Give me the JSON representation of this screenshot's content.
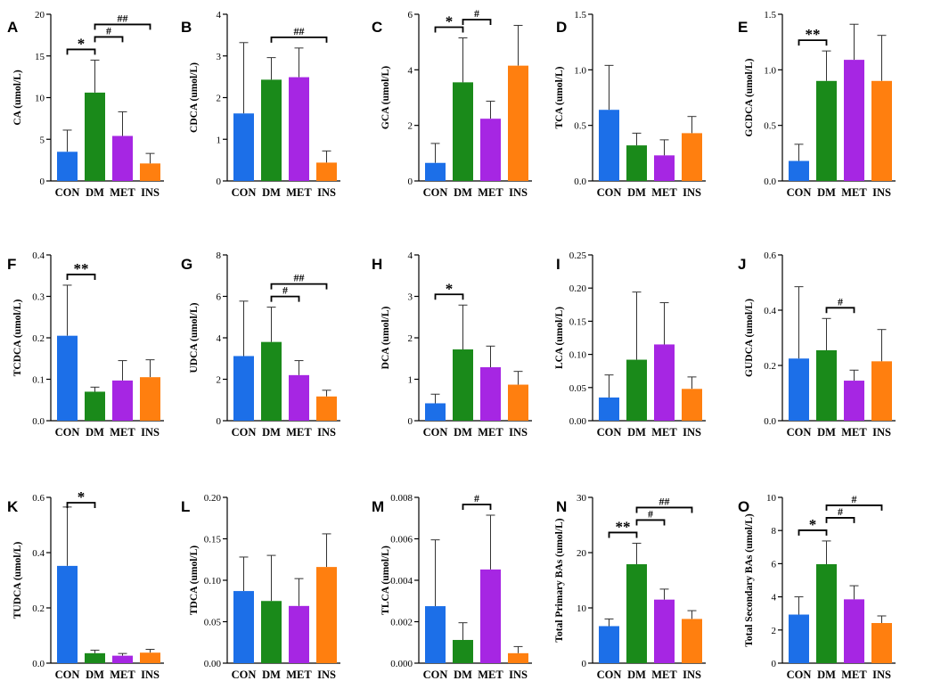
{
  "colors": {
    "CON": "#1c6fe8",
    "DM": "#1a8a1a",
    "MET": "#a626e3",
    "INS": "#ff7f0f"
  },
  "chart_data": [
    {
      "type": "bar",
      "panel": "A",
      "ylabel": "CA (umol/L)",
      "categories": [
        "CON",
        "DM",
        "MET",
        "INS"
      ],
      "values": [
        3.5,
        10.6,
        5.4,
        2.1
      ],
      "errors": [
        2.6,
        3.9,
        2.9,
        1.2
      ],
      "ylim": [
        0,
        20
      ],
      "yticks": [
        "0",
        "5",
        "10",
        "15",
        "20"
      ],
      "annotations": [
        {
          "from": 0,
          "to": 1,
          "label": "*"
        },
        {
          "from": 1,
          "to": 2,
          "label": "#"
        },
        {
          "from": 1,
          "to": 3,
          "label": "##"
        }
      ]
    },
    {
      "type": "bar",
      "panel": "B",
      "ylabel": "CDCA (umol/L)",
      "categories": [
        "CON",
        "DM",
        "MET",
        "INS"
      ],
      "values": [
        1.62,
        2.43,
        2.49,
        0.44
      ],
      "errors": [
        1.7,
        0.53,
        0.7,
        0.28
      ],
      "ylim": [
        0,
        4
      ],
      "yticks": [
        "0",
        "1",
        "2",
        "3",
        "4"
      ],
      "annotations": [
        {
          "from": 1,
          "to": 3,
          "label": "##"
        }
      ]
    },
    {
      "type": "bar",
      "panel": "C",
      "ylabel": "GCA (umol/L)",
      "categories": [
        "CON",
        "DM",
        "MET",
        "INS"
      ],
      "values": [
        0.65,
        3.55,
        2.24,
        4.15
      ],
      "errors": [
        0.7,
        1.6,
        0.63,
        1.45
      ],
      "ylim": [
        0,
        6
      ],
      "yticks": [
        "0",
        "2",
        "4",
        "6"
      ],
      "annotations": [
        {
          "from": 0,
          "to": 1,
          "label": "*"
        },
        {
          "from": 1,
          "to": 2,
          "label": "#"
        }
      ]
    },
    {
      "type": "bar",
      "panel": "D",
      "ylabel": "TCA (umol/L)",
      "categories": [
        "CON",
        "DM",
        "MET",
        "INS"
      ],
      "values": [
        0.64,
        0.32,
        0.23,
        0.43
      ],
      "errors": [
        0.4,
        0.11,
        0.14,
        0.15
      ],
      "ylim": [
        0,
        1.5
      ],
      "yticks": [
        "0.0",
        "0.5",
        "1.0",
        "1.5"
      ],
      "annotations": []
    },
    {
      "type": "bar",
      "panel": "E",
      "ylabel": "GCDCA (umol/L)",
      "categories": [
        "CON",
        "DM",
        "MET",
        "INS"
      ],
      "values": [
        0.18,
        0.9,
        1.09,
        0.9
      ],
      "errors": [
        0.15,
        0.27,
        0.32,
        0.41
      ],
      "ylim": [
        0,
        1.5
      ],
      "yticks": [
        "0.0",
        "0.5",
        "1.0",
        "1.5"
      ],
      "annotations": [
        {
          "from": 0,
          "to": 1,
          "label": "**"
        }
      ]
    },
    {
      "type": "bar",
      "panel": "F",
      "ylabel": "TCDCA (umol/L)",
      "categories": [
        "CON",
        "DM",
        "MET",
        "INS"
      ],
      "values": [
        0.205,
        0.07,
        0.097,
        0.105
      ],
      "errors": [
        0.122,
        0.011,
        0.048,
        0.042
      ],
      "ylim": [
        0,
        0.4
      ],
      "yticks": [
        "0.0",
        "0.1",
        "0.2",
        "0.3",
        "0.4"
      ],
      "annotations": [
        {
          "from": 0,
          "to": 1,
          "label": "**"
        }
      ]
    },
    {
      "type": "bar",
      "panel": "G",
      "ylabel": "UDCA (umol/L)",
      "categories": [
        "CON",
        "DM",
        "MET",
        "INS"
      ],
      "values": [
        3.12,
        3.8,
        2.2,
        1.17
      ],
      "errors": [
        2.65,
        1.68,
        0.7,
        0.3
      ],
      "ylim": [
        0,
        8
      ],
      "yticks": [
        "0",
        "2",
        "4",
        "6",
        "8"
      ],
      "annotations": [
        {
          "from": 1,
          "to": 2,
          "label": "#"
        },
        {
          "from": 1,
          "to": 3,
          "label": "##"
        }
      ]
    },
    {
      "type": "bar",
      "panel": "H",
      "ylabel": "DCA (umol/L)",
      "categories": [
        "CON",
        "DM",
        "MET",
        "INS"
      ],
      "values": [
        0.42,
        1.72,
        1.29,
        0.87
      ],
      "errors": [
        0.22,
        1.07,
        0.51,
        0.32
      ],
      "ylim": [
        0,
        4
      ],
      "yticks": [
        "0",
        "1",
        "2",
        "3",
        "4"
      ],
      "annotations": [
        {
          "from": 0,
          "to": 1,
          "label": "*"
        }
      ]
    },
    {
      "type": "bar",
      "panel": "I",
      "ylabel": "LCA (umol/L)",
      "categories": [
        "CON",
        "DM",
        "MET",
        "INS"
      ],
      "values": [
        0.035,
        0.092,
        0.115,
        0.048
      ],
      "errors": [
        0.034,
        0.102,
        0.063,
        0.018
      ],
      "ylim": [
        0,
        0.25
      ],
      "yticks": [
        "0.00",
        "0.05",
        "0.10",
        "0.15",
        "0.20",
        "0.25"
      ],
      "annotations": []
    },
    {
      "type": "bar",
      "panel": "J",
      "ylabel": "GUDCA (umol/L)",
      "categories": [
        "CON",
        "DM",
        "MET",
        "INS"
      ],
      "values": [
        0.225,
        0.255,
        0.145,
        0.215
      ],
      "errors": [
        0.26,
        0.115,
        0.038,
        0.115
      ],
      "ylim": [
        0,
        0.6
      ],
      "yticks": [
        "0.0",
        "0.2",
        "0.4",
        "0.6"
      ],
      "annotations": [
        {
          "from": 1,
          "to": 2,
          "label": "#"
        }
      ]
    },
    {
      "type": "bar",
      "panel": "K",
      "ylabel": "TUDCA (umol/L)",
      "categories": [
        "CON",
        "DM",
        "MET",
        "INS"
      ],
      "values": [
        0.352,
        0.036,
        0.027,
        0.038
      ],
      "errors": [
        0.213,
        0.011,
        0.008,
        0.012
      ],
      "ylim": [
        0,
        0.6
      ],
      "yticks": [
        "0.0",
        "0.2",
        "0.4",
        "0.6"
      ],
      "annotations": [
        {
          "from": 0,
          "to": 1,
          "label": "*"
        }
      ]
    },
    {
      "type": "bar",
      "panel": "L",
      "ylabel": "TDCA (umol/L)",
      "categories": [
        "CON",
        "DM",
        "MET",
        "INS"
      ],
      "values": [
        0.087,
        0.075,
        0.069,
        0.116
      ],
      "errors": [
        0.041,
        0.055,
        0.033,
        0.04
      ],
      "ylim": [
        0,
        0.2
      ],
      "yticks": [
        "0.00",
        "0.05",
        "0.10",
        "0.15",
        "0.20"
      ],
      "annotations": []
    },
    {
      "type": "bar",
      "panel": "M",
      "ylabel": "TLCA (umol/L)",
      "categories": [
        "CON",
        "DM",
        "MET",
        "INS"
      ],
      "values": [
        0.00275,
        0.00112,
        0.00452,
        0.00048
      ],
      "errors": [
        0.0032,
        0.00083,
        0.00262,
        0.00032
      ],
      "ylim": [
        0,
        0.008
      ],
      "yticks": [
        "0.000",
        "0.002",
        "0.004",
        "0.006",
        "0.008"
      ],
      "annotations": [
        {
          "from": 1,
          "to": 2,
          "label": "#"
        }
      ]
    },
    {
      "type": "bar",
      "panel": "N",
      "ylabel": "Total Primary BAs (umol/L)",
      "categories": [
        "CON",
        "DM",
        "MET",
        "INS"
      ],
      "values": [
        6.7,
        17.9,
        11.5,
        8.0
      ],
      "errors": [
        1.3,
        3.8,
        1.9,
        1.5
      ],
      "ylim": [
        0,
        30
      ],
      "yticks": [
        "0",
        "10",
        "20",
        "30"
      ],
      "annotations": [
        {
          "from": 0,
          "to": 1,
          "label": "**"
        },
        {
          "from": 1,
          "to": 2,
          "label": "#"
        },
        {
          "from": 1,
          "to": 3,
          "label": "##"
        }
      ]
    },
    {
      "type": "bar",
      "panel": "O",
      "ylabel": "Total Secondary BAs (umol/L)",
      "categories": [
        "CON",
        "DM",
        "MET",
        "INS"
      ],
      "values": [
        2.93,
        5.97,
        3.85,
        2.42
      ],
      "errors": [
        1.07,
        1.4,
        0.82,
        0.43
      ],
      "ylim": [
        0,
        10
      ],
      "yticks": [
        "0",
        "2",
        "4",
        "6",
        "8",
        "10"
      ],
      "annotations": [
        {
          "from": 0,
          "to": 1,
          "label": "*"
        },
        {
          "from": 1,
          "to": 2,
          "label": "#"
        },
        {
          "from": 1,
          "to": 3,
          "label": "#"
        }
      ]
    }
  ]
}
